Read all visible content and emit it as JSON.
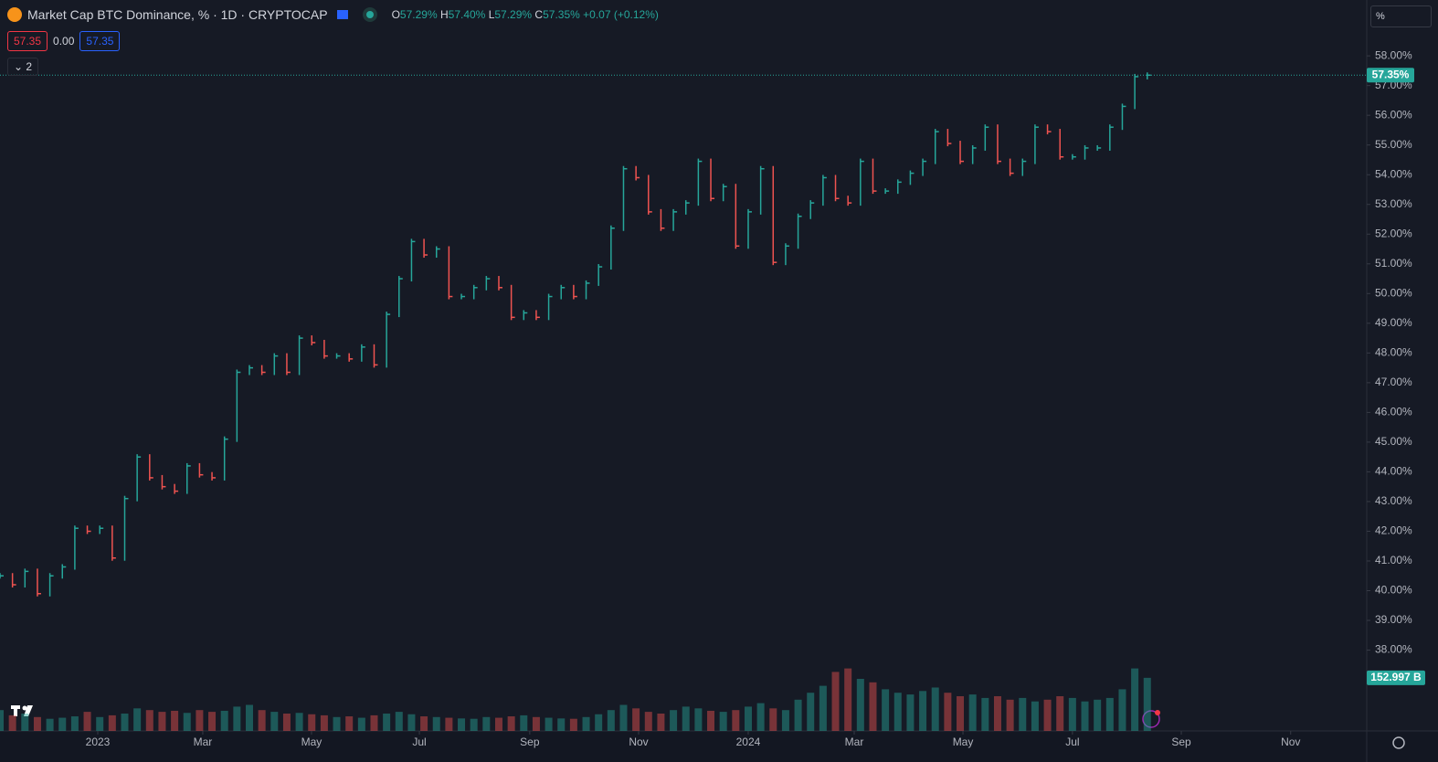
{
  "header": {
    "title": "Market Cap BTC Dominance, % · 1D · CRYPTOCAP",
    "open_key": "O",
    "open": "57.29%",
    "high_key": "H",
    "high": "57.40%",
    "low_key": "L",
    "low": "57.29%",
    "close_key": "C",
    "close": "57.35%",
    "change": "+0.07 (+0.12%)",
    "box_sell": "57.35",
    "spread": "0.00",
    "box_buy": "57.35",
    "collapse": "2",
    "scale_input": "%",
    "price_label": "57.35%",
    "volume_label": "152.997 B"
  },
  "chart_data": {
    "type": "ohlc",
    "values": [
      40.5,
      40.2,
      40.65,
      39.9,
      40.5,
      40.8,
      42.1,
      42.0,
      42.1,
      41.1,
      43.1,
      44.5,
      43.8,
      43.5,
      43.35,
      44.2,
      43.9,
      43.8,
      45.1,
      47.35,
      47.5,
      47.35,
      47.9,
      47.35,
      48.5,
      48.35,
      47.9,
      47.9,
      47.8,
      48.2,
      47.6,
      49.3,
      50.5,
      51.75,
      51.3,
      51.5,
      49.9,
      49.9,
      50.2,
      50.5,
      50.2,
      49.2,
      49.35,
      49.2,
      49.9,
      50.2,
      49.9,
      50.35,
      50.9,
      52.2,
      54.2,
      53.9,
      52.75,
      52.2,
      52.75,
      53.05,
      54.45,
      53.2,
      53.6,
      51.6,
      52.75,
      54.2,
      51.05,
      51.6,
      52.6,
      53.05,
      53.9,
      53.2,
      53.05,
      54.45,
      53.45,
      53.45,
      53.75,
      54.05,
      54.45,
      55.45,
      55.05,
      54.45,
      54.9,
      55.6,
      54.45,
      54.05,
      54.45,
      55.6,
      55.45,
      54.6,
      54.6,
      54.9,
      54.9,
      55.6,
      56.3,
      57.3,
      57.35
    ],
    "volume": [
      60,
      45,
      50,
      40,
      35,
      38,
      42,
      55,
      40,
      45,
      50,
      65,
      60,
      55,
      58,
      52,
      60,
      55,
      58,
      70,
      75,
      60,
      55,
      50,
      52,
      48,
      45,
      40,
      42,
      38,
      45,
      50,
      55,
      48,
      42,
      40,
      38,
      36,
      35,
      40,
      38,
      42,
      45,
      40,
      38,
      36,
      35,
      40,
      48,
      60,
      75,
      65,
      55,
      50,
      60,
      70,
      65,
      58,
      55,
      60,
      70,
      80,
      65,
      60,
      90,
      110,
      130,
      170,
      180,
      150,
      140,
      120,
      110,
      105,
      115,
      125,
      110,
      100,
      105,
      95,
      100,
      90,
      95,
      85,
      90,
      100,
      95,
      85,
      90,
      95,
      120,
      180,
      152.997
    ],
    "up_color": "#26a69a",
    "down_color": "#ef5350",
    "xlim": [
      0,
      109.6
    ],
    "xticks": [
      {
        "value": 7.84,
        "label": "2023"
      },
      {
        "value": 16.26,
        "label": "Mar"
      },
      {
        "value": 24.98,
        "label": "May"
      },
      {
        "value": 33.63,
        "label": "Jul"
      },
      {
        "value": 42.48,
        "label": "Sep"
      },
      {
        "value": 51.21,
        "label": "Nov"
      },
      {
        "value": 60.0,
        "label": "2024"
      },
      {
        "value": 68.5,
        "label": "Mar"
      },
      {
        "value": 77.22,
        "label": "May"
      },
      {
        "value": 86.0,
        "label": "Jul"
      },
      {
        "value": 94.73,
        "label": "Sep"
      },
      {
        "value": 103.5,
        "label": "Nov"
      }
    ],
    "ylim": [
      35.28,
      59.88
    ],
    "yticks": [
      {
        "value": 38,
        "label": "38.00%"
      },
      {
        "value": 39,
        "label": "39.00%"
      },
      {
        "value": 40,
        "label": "40.00%"
      },
      {
        "value": 41,
        "label": "41.00%"
      },
      {
        "value": 42,
        "label": "42.00%"
      },
      {
        "value": 43,
        "label": "43.00%"
      },
      {
        "value": 44,
        "label": "44.00%"
      },
      {
        "value": 45,
        "label": "45.00%"
      },
      {
        "value": 46,
        "label": "46.00%"
      },
      {
        "value": 47,
        "label": "47.00%"
      },
      {
        "value": 48,
        "label": "48.00%"
      },
      {
        "value": 49,
        "label": "49.00%"
      },
      {
        "value": 50,
        "label": "50.00%"
      },
      {
        "value": 51,
        "label": "51.00%"
      },
      {
        "value": 52,
        "label": "52.00%"
      },
      {
        "value": 53,
        "label": "53.00%"
      },
      {
        "value": 54,
        "label": "54.00%"
      },
      {
        "value": 55,
        "label": "55.00%"
      },
      {
        "value": 56,
        "label": "56.00%"
      },
      {
        "value": 57,
        "label": "57.00%"
      },
      {
        "value": 58,
        "label": "58.00%"
      }
    ]
  }
}
